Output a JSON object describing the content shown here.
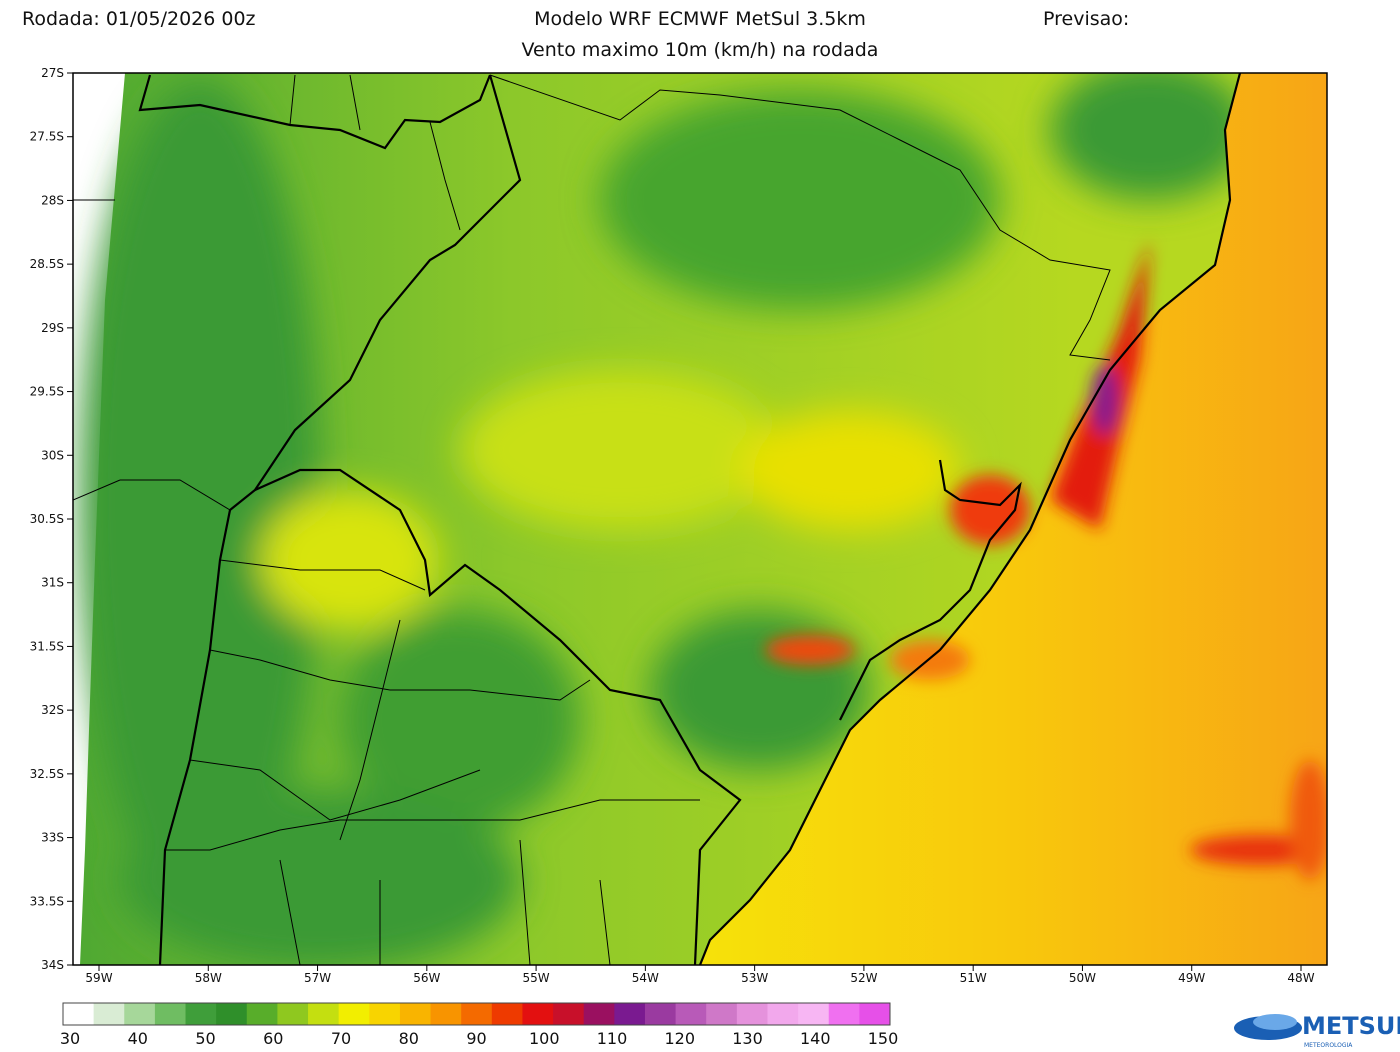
{
  "header": {
    "run": "Rodada: 01/05/2026 00z",
    "model": "Modelo WRF ECMWF MetSul 3.5km",
    "forecast": "Previsao:",
    "subtitle": "Vento maximo 10m (km/h) na rodada"
  },
  "map": {
    "lat_labels": [
      "27S",
      "27.5S",
      "28S",
      "28.5S",
      "29S",
      "29.5S",
      "30S",
      "30.5S",
      "31S",
      "31.5S",
      "32S",
      "32.5S",
      "33S",
      "33.5S",
      "34S"
    ],
    "lon_labels": [
      "59W",
      "58W",
      "57W",
      "56W",
      "55W",
      "54W",
      "53W",
      "52W",
      "51W",
      "50W",
      "49W",
      "48W"
    ]
  },
  "colorbar": {
    "labels": [
      30,
      40,
      50,
      60,
      70,
      80,
      90,
      100,
      110,
      120,
      130,
      140,
      150
    ],
    "colors": [
      "#ffffff",
      "#d9ecd4",
      "#a6d79a",
      "#6fbd62",
      "#3f9e3a",
      "#2f8f2a",
      "#58ad2a",
      "#8fc81f",
      "#c4df10",
      "#f2ee00",
      "#f8d400",
      "#f9b400",
      "#f89400",
      "#f46a00",
      "#ee3a00",
      "#e31010",
      "#c8102a",
      "#9a1060",
      "#7a1a90",
      "#9a3aa0",
      "#b85ab8",
      "#cf78c8",
      "#e592dc",
      "#f2a8ec",
      "#f7b6f3",
      "#f070f0",
      "#e650e8"
    ]
  },
  "logo": {
    "name": "METSUL",
    "tag": "METEOROLOGIA"
  }
}
